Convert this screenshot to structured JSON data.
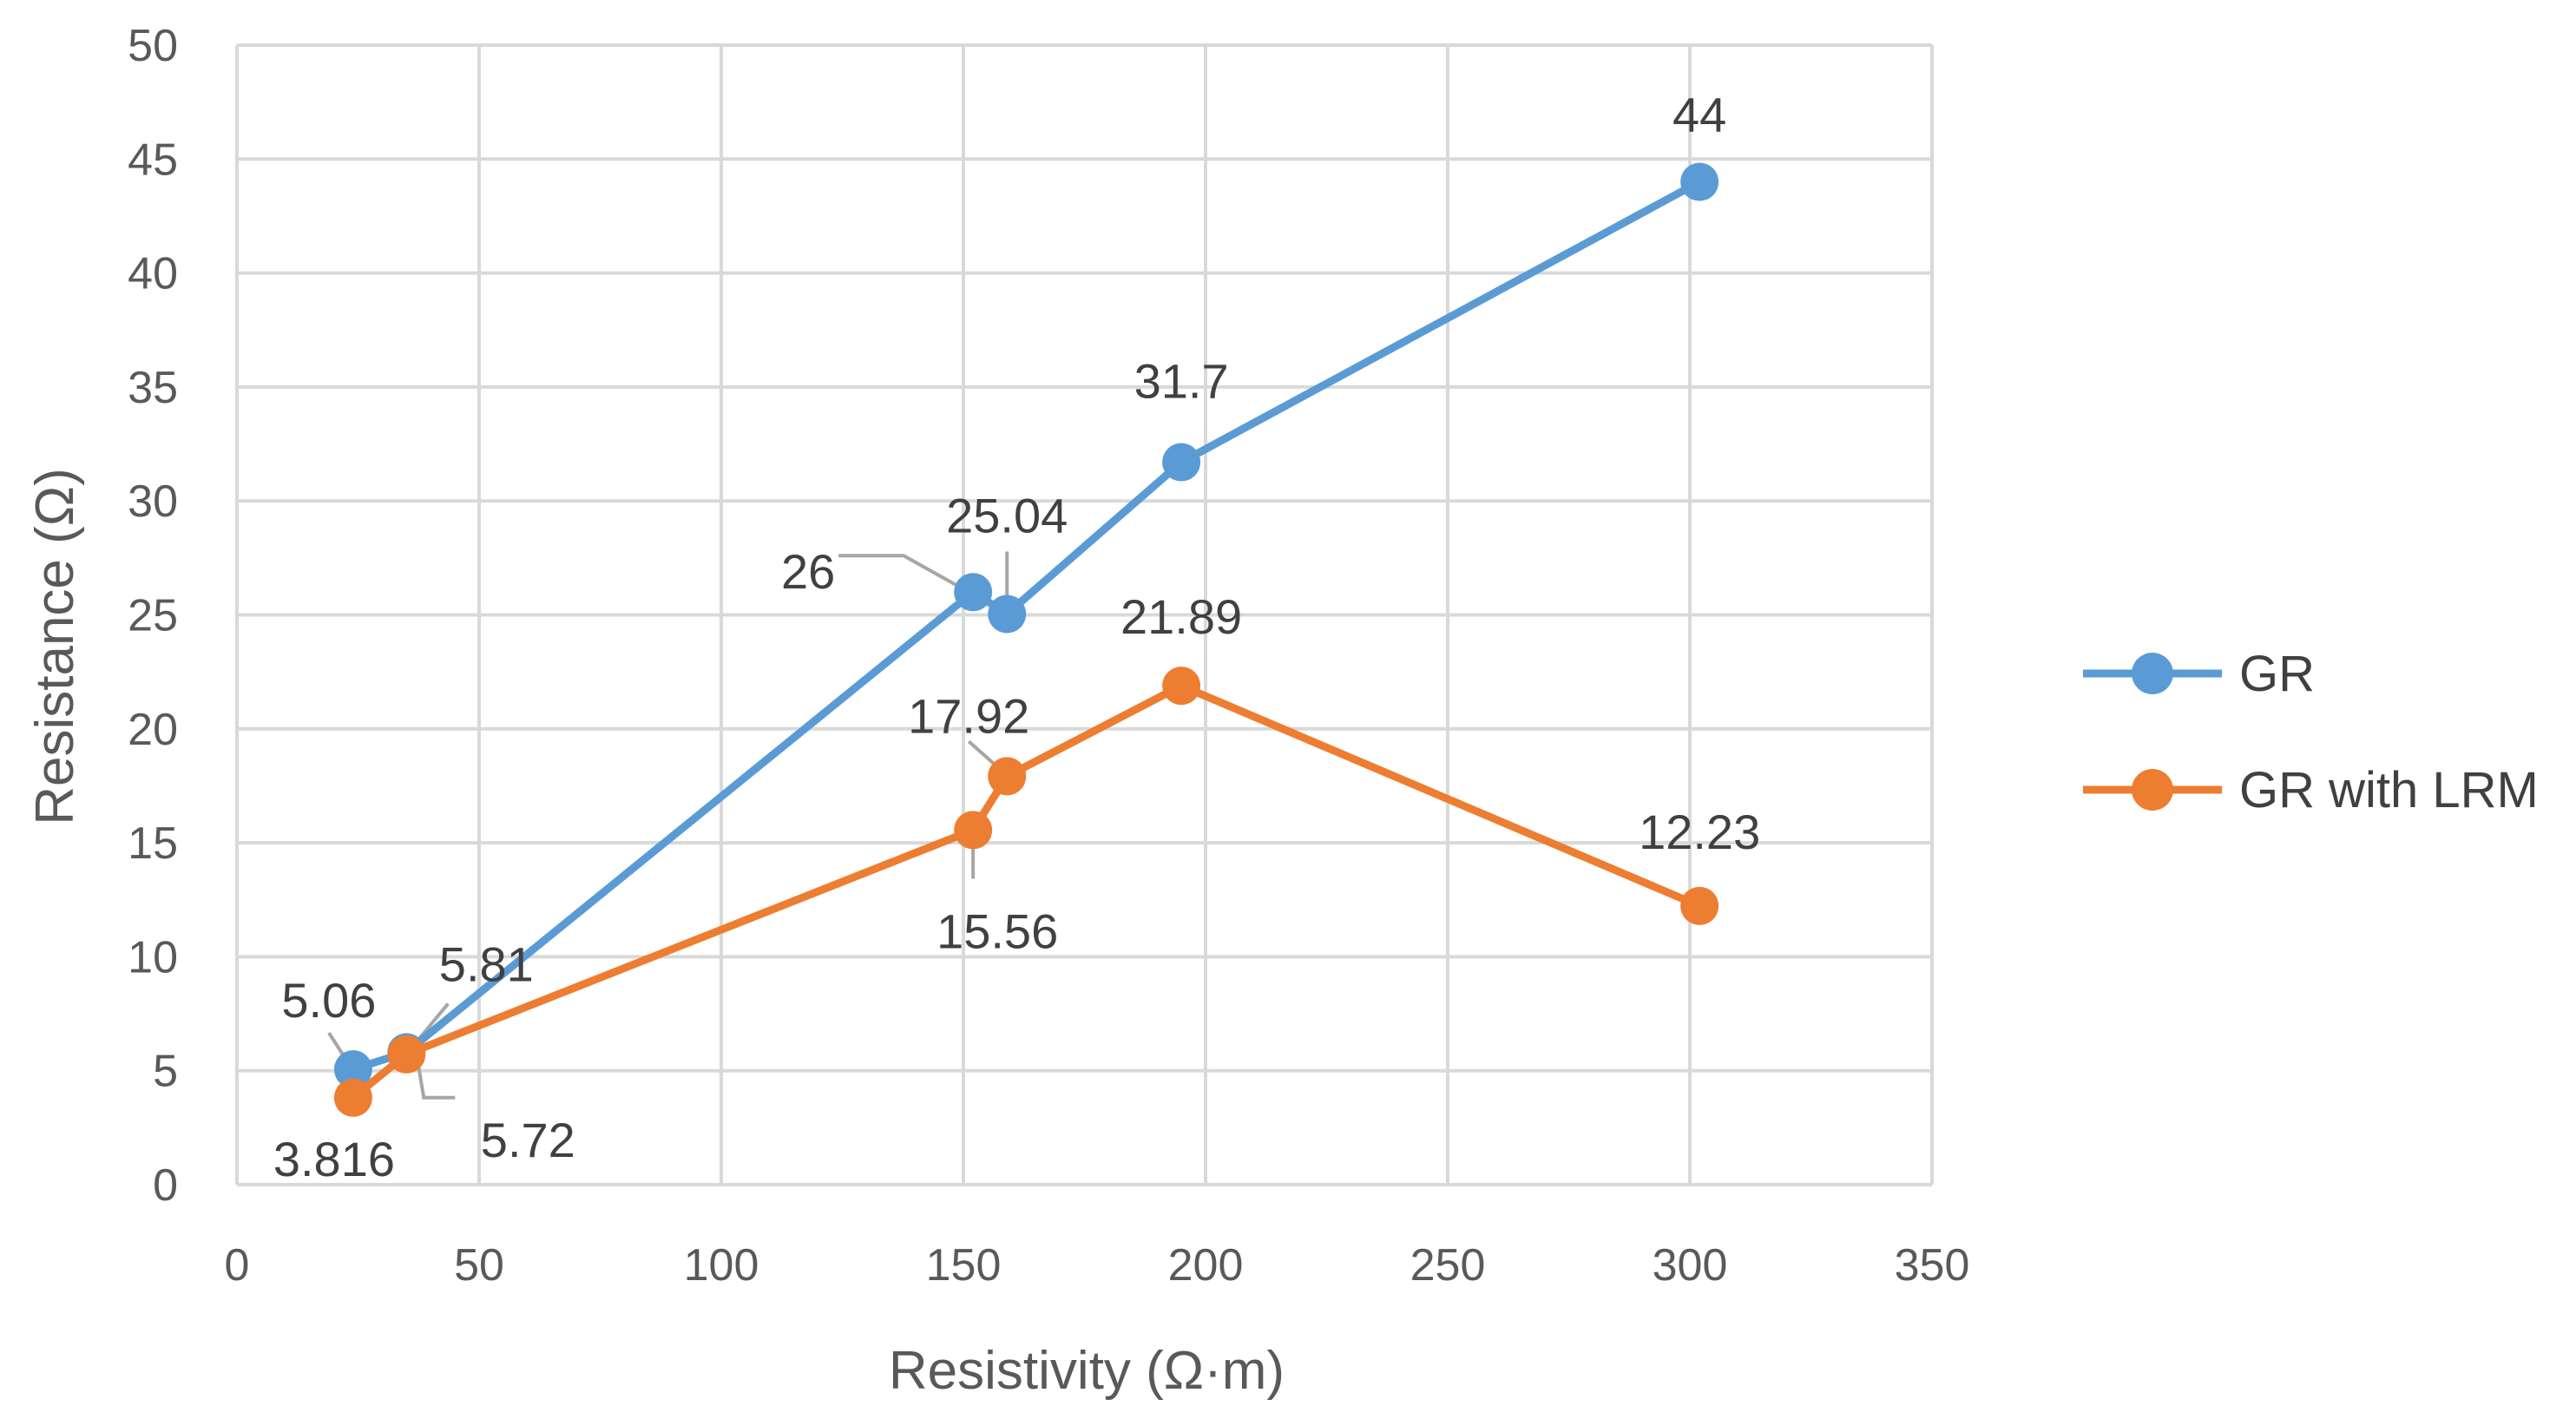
{
  "chart_data": {
    "type": "line",
    "title": "",
    "xlabel": "Resistivity (Ω·m)",
    "ylabel": "Resistance (Ω)",
    "xlim": [
      0,
      350
    ],
    "ylim": [
      0,
      50
    ],
    "x_ticks": [
      "0",
      "50",
      "100",
      "150",
      "200",
      "250",
      "300",
      "350"
    ],
    "y_ticks": [
      "0",
      "5",
      "10",
      "15",
      "20",
      "25",
      "30",
      "35",
      "40",
      "45",
      "50"
    ],
    "grid": true,
    "legend_position": "right",
    "series": [
      {
        "name": "GR",
        "color": "#5B9BD5",
        "points": [
          {
            "x": 24,
            "y": 5.06,
            "label": "5.06"
          },
          {
            "x": 35,
            "y": 5.81,
            "label": "5.81"
          },
          {
            "x": 152,
            "y": 26,
            "label": "26"
          },
          {
            "x": 159,
            "y": 25.04,
            "label": "25.04"
          },
          {
            "x": 195,
            "y": 31.7,
            "label": "31.7"
          },
          {
            "x": 302,
            "y": 44,
            "label": "44"
          }
        ]
      },
      {
        "name": "GR with LRM",
        "color": "#ED7D31",
        "points": [
          {
            "x": 24,
            "y": 3.816,
            "label": "3.816"
          },
          {
            "x": 35,
            "y": 5.72,
            "label": "5.72"
          },
          {
            "x": 152,
            "y": 15.56,
            "label": "15.56"
          },
          {
            "x": 159,
            "y": 17.92,
            "label": "17.92"
          },
          {
            "x": 195,
            "y": 21.89,
            "label": "21.89"
          },
          {
            "x": 302,
            "y": 12.23,
            "label": "12.23"
          }
        ]
      }
    ]
  }
}
